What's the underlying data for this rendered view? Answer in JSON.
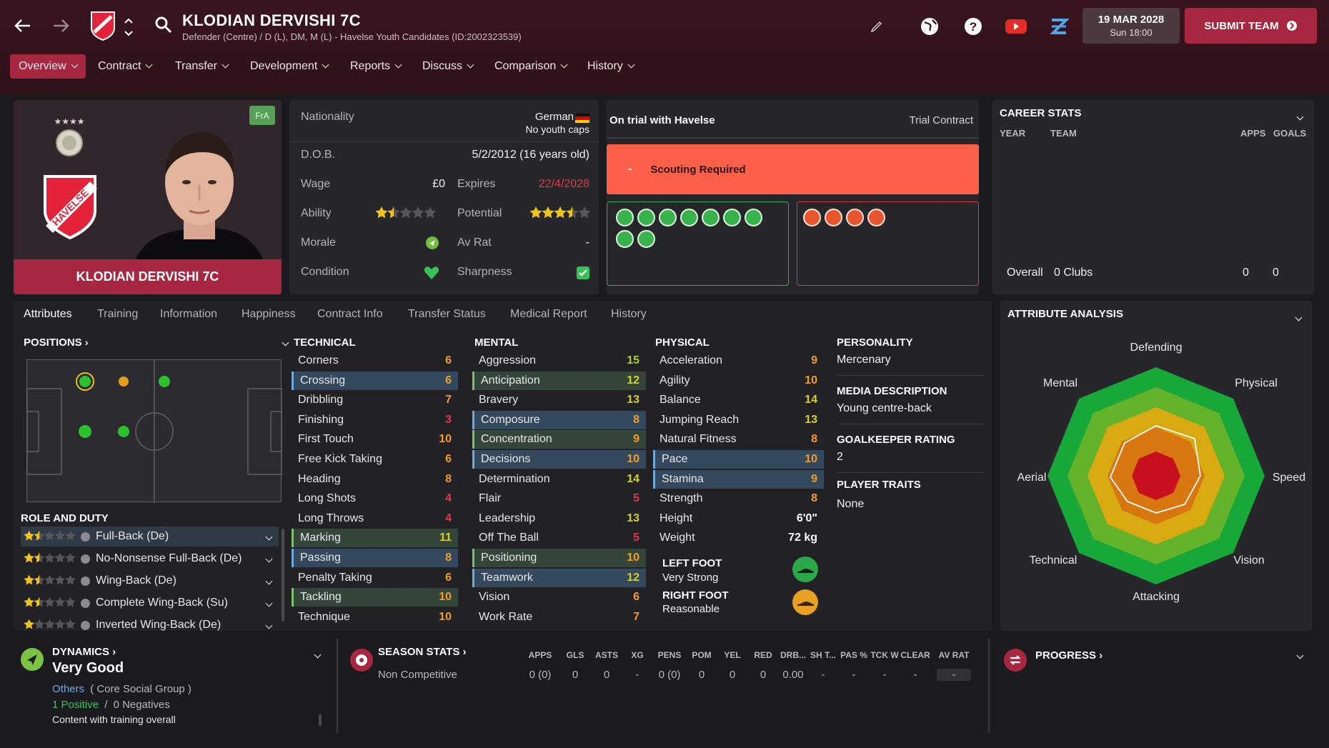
{
  "header": {
    "player_name": "KLODIAN DERVISHI 7C",
    "subtitle": "Defender (Centre) / D (L), DM, M (L) - Havelse Youth Candidates (ID:2002323539)",
    "date": "19 MAR 2028",
    "time": "Sun 18:00",
    "submit_label": "SUBMIT TEAM",
    "accent": "#a82740"
  },
  "menu": {
    "items": [
      "Overview",
      "Contract",
      "Transfer",
      "Development",
      "Reports",
      "Discuss",
      "Comparison",
      "History"
    ]
  },
  "profile": {
    "badge_code": "FrA",
    "name_banner": "KLODIAN DERVISHI 7C"
  },
  "info": {
    "nationality_label": "Nationality",
    "nationality": "German",
    "caps": "No youth caps",
    "dob_label": "D.O.B.",
    "dob": "5/2/2012 (16 years old)",
    "wage_label": "Wage",
    "wage": "£0",
    "expires_label": "Expires",
    "expires": "22/4/2028",
    "ability_label": "Ability",
    "potential_label": "Potential",
    "morale_label": "Morale",
    "avrat_label": "Av Rat",
    "avrat": "-",
    "condition_label": "Condition",
    "sharpness_label": "Sharpness",
    "ability_stars": 1.5,
    "potential_stars": 3.5
  },
  "trial": {
    "title": "On trial with Havelse",
    "contract": "Trial Contract",
    "scouting_dash": "-",
    "scouting": "Scouting Required"
  },
  "career": {
    "title": "CAREER STATS",
    "col_year": "YEAR",
    "col_team": "TEAM",
    "col_apps": "APPS",
    "col_goals": "GOALS",
    "overall": "Overall",
    "clubs": "0 Clubs",
    "apps": "0",
    "goals": "0"
  },
  "tabs": [
    "Attributes",
    "Training",
    "Information",
    "Happiness",
    "Contract Info",
    "Transfer Status",
    "Medical Report",
    "History"
  ],
  "positions": {
    "title": "POSITIONS",
    "role_title": "ROLE AND DUTY",
    "roles": [
      {
        "name": "Full-Back (De)",
        "stars": 1.5
      },
      {
        "name": "No-Nonsense Full-Back (De)",
        "stars": 1.5
      },
      {
        "name": "Wing-Back (De)",
        "stars": 1.5
      },
      {
        "name": "Complete Wing-Back (Su)",
        "stars": 1.5
      },
      {
        "name": "Inverted Wing-Back (De)",
        "stars": 1
      }
    ]
  },
  "technical": {
    "title": "TECHNICAL",
    "attrs": [
      {
        "n": "Corners",
        "v": "6",
        "c": "orange",
        "h": ""
      },
      {
        "n": "Crossing",
        "v": "6",
        "c": "orange",
        "h": "blue"
      },
      {
        "n": "Dribbling",
        "v": "7",
        "c": "orange",
        "h": ""
      },
      {
        "n": "Finishing",
        "v": "3",
        "c": "red",
        "h": ""
      },
      {
        "n": "First Touch",
        "v": "10",
        "c": "orange",
        "h": ""
      },
      {
        "n": "Free Kick Taking",
        "v": "6",
        "c": "orange",
        "h": ""
      },
      {
        "n": "Heading",
        "v": "8",
        "c": "orange",
        "h": ""
      },
      {
        "n": "Long Shots",
        "v": "4",
        "c": "red",
        "h": ""
      },
      {
        "n": "Long Throws",
        "v": "4",
        "c": "red",
        "h": ""
      },
      {
        "n": "Marking",
        "v": "11",
        "c": "yellow",
        "h": "green"
      },
      {
        "n": "Passing",
        "v": "8",
        "c": "orange",
        "h": "blue"
      },
      {
        "n": "Penalty Taking",
        "v": "6",
        "c": "orange",
        "h": ""
      },
      {
        "n": "Tackling",
        "v": "10",
        "c": "orange",
        "h": "green"
      },
      {
        "n": "Technique",
        "v": "10",
        "c": "orange",
        "h": ""
      }
    ]
  },
  "mental": {
    "title": "MENTAL",
    "attrs": [
      {
        "n": "Aggression",
        "v": "15",
        "c": "light",
        "h": ""
      },
      {
        "n": "Anticipation",
        "v": "12",
        "c": "yellow",
        "h": "green"
      },
      {
        "n": "Bravery",
        "v": "13",
        "c": "yellow",
        "h": ""
      },
      {
        "n": "Composure",
        "v": "8",
        "c": "orange",
        "h": "blue"
      },
      {
        "n": "Concentration",
        "v": "9",
        "c": "orange",
        "h": "green"
      },
      {
        "n": "Decisions",
        "v": "10",
        "c": "orange",
        "h": "blue"
      },
      {
        "n": "Determination",
        "v": "14",
        "c": "yellow",
        "h": ""
      },
      {
        "n": "Flair",
        "v": "5",
        "c": "red",
        "h": ""
      },
      {
        "n": "Leadership",
        "v": "13",
        "c": "yellow",
        "h": ""
      },
      {
        "n": "Off The Ball",
        "v": "5",
        "c": "red",
        "h": ""
      },
      {
        "n": "Positioning",
        "v": "10",
        "c": "orange",
        "h": "green"
      },
      {
        "n": "Teamwork",
        "v": "12",
        "c": "yellow",
        "h": "blue"
      },
      {
        "n": "Vision",
        "v": "6",
        "c": "orange",
        "h": ""
      },
      {
        "n": "Work Rate",
        "v": "7",
        "c": "orange",
        "h": ""
      }
    ]
  },
  "physical": {
    "title": "PHYSICAL",
    "attrs": [
      {
        "n": "Acceleration",
        "v": "9",
        "c": "orange",
        "h": ""
      },
      {
        "n": "Agility",
        "v": "10",
        "c": "orange",
        "h": ""
      },
      {
        "n": "Balance",
        "v": "14",
        "c": "yellow",
        "h": ""
      },
      {
        "n": "Jumping Reach",
        "v": "13",
        "c": "yellow",
        "h": ""
      },
      {
        "n": "Natural Fitness",
        "v": "8",
        "c": "orange",
        "h": ""
      },
      {
        "n": "Pace",
        "v": "10",
        "c": "orange",
        "h": "blue"
      },
      {
        "n": "Stamina",
        "v": "9",
        "c": "orange",
        "h": "blue"
      },
      {
        "n": "Strength",
        "v": "8",
        "c": "orange",
        "h": ""
      },
      {
        "n": "Height",
        "v": "6'0\"",
        "c": "white",
        "h": ""
      },
      {
        "n": "Weight",
        "v": "72 kg",
        "c": "white",
        "h": ""
      }
    ],
    "left_foot_label": "LEFT FOOT",
    "left_foot": "Very Strong",
    "right_foot_label": "RIGHT FOOT",
    "right_foot": "Reasonable"
  },
  "personality": {
    "title": "PERSONALITY",
    "value": "Mercenary",
    "media_title": "MEDIA DESCRIPTION",
    "media": "Young centre-back",
    "gk_title": "GOALKEEPER RATING",
    "gk": "2",
    "traits_title": "PLAYER TRAITS",
    "traits": "None"
  },
  "analysis": {
    "title": "ATTRIBUTE ANALYSIS",
    "labels": [
      "Defending",
      "Physical",
      "Speed",
      "Vision",
      "Attacking",
      "Technical",
      "Aerial",
      "Mental"
    ]
  },
  "dynamics": {
    "title": "DYNAMICS",
    "value": "Very Good",
    "group": "Others",
    "group_note": "( Core Social Group )",
    "positive": "1 Positive",
    "sep": "/",
    "negatives": "0 Negatives",
    "note": "Content with training overall"
  },
  "season": {
    "title": "SEASON STATS",
    "cols": [
      "APPS",
      "GLS",
      "ASTS",
      "XG",
      "PENS",
      "POM",
      "YEL",
      "RED",
      "DRB...",
      "SH T...",
      "PAS %",
      "TCK W",
      "CLEAR",
      "AV RAT"
    ],
    "row_label": "Non Competitive",
    "row": [
      "0 (0)",
      "0",
      "0",
      "-",
      "0 (0)",
      "0",
      "0",
      "0",
      "0.00",
      "-",
      "-",
      "-",
      "-",
      "-"
    ]
  },
  "progress": {
    "title": "PROGRESS"
  }
}
